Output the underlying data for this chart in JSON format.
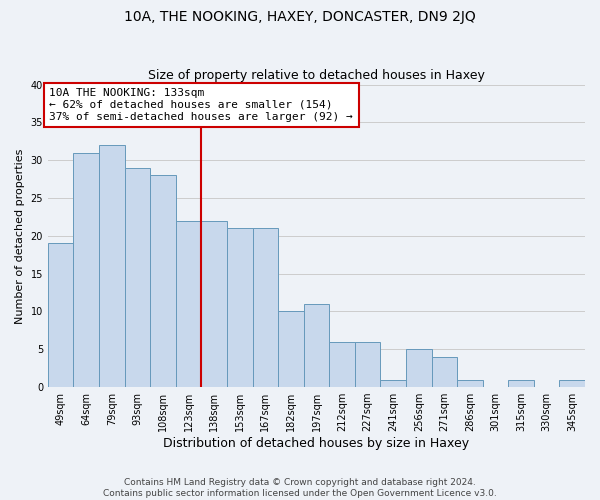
{
  "title": "10A, THE NOOKING, HAXEY, DONCASTER, DN9 2JQ",
  "subtitle": "Size of property relative to detached houses in Haxey",
  "xlabel": "Distribution of detached houses by size in Haxey",
  "ylabel": "Number of detached properties",
  "categories": [
    "49sqm",
    "64sqm",
    "79sqm",
    "93sqm",
    "108sqm",
    "123sqm",
    "138sqm",
    "153sqm",
    "167sqm",
    "182sqm",
    "197sqm",
    "212sqm",
    "227sqm",
    "241sqm",
    "256sqm",
    "271sqm",
    "286sqm",
    "301sqm",
    "315sqm",
    "330sqm",
    "345sqm"
  ],
  "values": [
    19,
    31,
    32,
    29,
    28,
    22,
    22,
    21,
    21,
    10,
    11,
    6,
    6,
    1,
    5,
    4,
    1,
    0,
    1,
    0,
    1
  ],
  "bar_color": "#c8d8ec",
  "bar_edge_color": "#6699bb",
  "reference_line_x": 5.5,
  "reference_line_color": "#cc0000",
  "annotation_line1": "10A THE NOOKING: 133sqm",
  "annotation_line2": "← 62% of detached houses are smaller (154)",
  "annotation_line3": "37% of semi-detached houses are larger (92) →",
  "annotation_box_color": "#ffffff",
  "annotation_box_edge_color": "#cc0000",
  "ylim": [
    0,
    40
  ],
  "yticks": [
    0,
    5,
    10,
    15,
    20,
    25,
    30,
    35,
    40
  ],
  "grid_color": "#cccccc",
  "background_color": "#eef2f7",
  "footer_line1": "Contains HM Land Registry data © Crown copyright and database right 2024.",
  "footer_line2": "Contains public sector information licensed under the Open Government Licence v3.0.",
  "title_fontsize": 10,
  "subtitle_fontsize": 9,
  "xlabel_fontsize": 9,
  "ylabel_fontsize": 8,
  "tick_fontsize": 7,
  "annotation_fontsize": 8,
  "footer_fontsize": 6.5
}
